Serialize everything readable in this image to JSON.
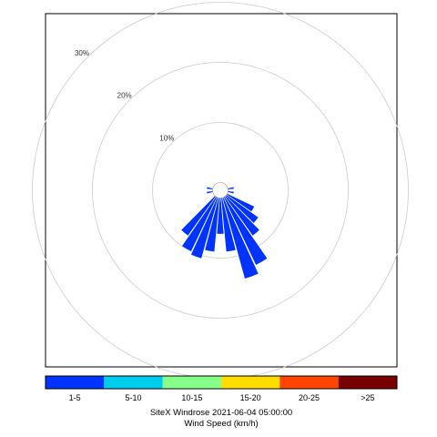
{
  "chart_data": {
    "type": "windrose",
    "title": "SiteX Windrose 2021-06-04 05:00:00",
    "legend_title": "Wind Speed (km/h)",
    "radial_unit": "%",
    "radial_rings": [
      {
        "value": 10,
        "label": "10%"
      },
      {
        "value": 20,
        "label": "20%"
      },
      {
        "value": 30,
        "label": "30%"
      }
    ],
    "radial_max": 30,
    "speed_bins": [
      {
        "label": "1-5",
        "color": "#0033ff"
      },
      {
        "label": "5-10",
        "color": "#00ccee"
      },
      {
        "label": "10-15",
        "color": "#88ff88"
      },
      {
        "label": "15-20",
        "color": "#ffdd00"
      },
      {
        "label": "20-25",
        "color": "#ff4400"
      },
      {
        "label": ">25",
        "color": "#770000"
      }
    ],
    "directions": [
      {
        "angle": 80,
        "values": [
          1.0,
          0,
          0,
          0,
          0,
          0
        ]
      },
      {
        "angle": 100,
        "values": [
          1.0,
          0,
          0,
          0,
          0,
          0
        ]
      },
      {
        "angle": 120,
        "values": [
          5.0,
          0,
          0,
          0,
          0,
          0
        ]
      },
      {
        "angle": 130,
        "values": [
          6.5,
          0,
          0,
          0,
          0,
          0
        ]
      },
      {
        "angle": 140,
        "values": [
          8.0,
          0,
          0,
          0,
          0,
          0
        ]
      },
      {
        "angle": 150,
        "values": [
          12.5,
          0,
          0,
          0,
          0,
          0
        ]
      },
      {
        "angle": 160,
        "values": [
          14.0,
          0,
          0,
          0,
          0,
          0
        ]
      },
      {
        "angle": 170,
        "values": [
          9.0,
          0,
          0,
          0,
          0,
          0
        ]
      },
      {
        "angle": 180,
        "values": [
          6.0,
          0,
          0,
          0,
          0,
          0
        ]
      },
      {
        "angle": 190,
        "values": [
          9.0,
          0,
          0,
          0,
          0,
          0
        ]
      },
      {
        "angle": 200,
        "values": [
          10.5,
          0,
          0,
          0,
          0,
          0
        ]
      },
      {
        "angle": 210,
        "values": [
          10.0,
          0,
          0,
          0,
          0,
          0
        ]
      },
      {
        "angle": 220,
        "values": [
          8.0,
          0,
          0,
          0,
          0,
          0
        ]
      },
      {
        "angle": 260,
        "values": [
          1.0,
          0,
          0,
          0,
          0,
          0
        ]
      },
      {
        "angle": 280,
        "values": [
          1.0,
          0,
          0,
          0,
          0,
          0
        ]
      }
    ]
  }
}
